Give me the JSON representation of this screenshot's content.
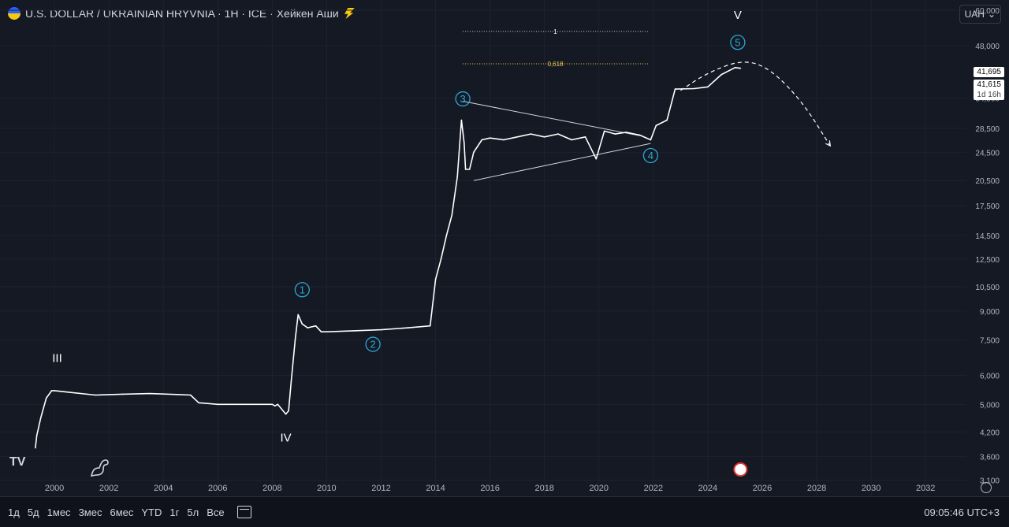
{
  "header": {
    "title": "U.S. DOLLAR / UKRAINIAN HRYVNIA · 1H · ICE · Хейкен Аши",
    "currency": "UAH"
  },
  "price_labels": {
    "current_price": "41,695",
    "last_price": "41,615",
    "countdown": "1d 16h"
  },
  "bottom_bar": {
    "ranges": [
      "1д",
      "5д",
      "1мес",
      "3мес",
      "6мес",
      "YTD",
      "1г",
      "5л",
      "Все"
    ],
    "clock": "09:05:46 UTC+3"
  },
  "colors": {
    "background": "#151924",
    "price_line": "#ffffff",
    "wave_circle": "#2ba7d6",
    "fib_label": "#f2c94c"
  },
  "chart_data": {
    "type": "line",
    "title": "",
    "xlabel": "",
    "ylabel": "",
    "y_scale": "log",
    "xlim": [
      1998.0,
      2033.5
    ],
    "ylim": [
      2800,
      64000
    ],
    "x_ticks": [
      "2000",
      "2002",
      "2004",
      "2006",
      "2008",
      "2010",
      "2012",
      "2014",
      "2016",
      "2018",
      "2020",
      "2022",
      "2024",
      "2026",
      "2028",
      "2030",
      "2032"
    ],
    "y_ticks": [
      "60,000",
      "48,000",
      "34,500",
      "28,500",
      "24,500",
      "20,500",
      "17,500",
      "14,500",
      "12,500",
      "10,500",
      "9,000",
      "7,500",
      "6,000",
      "5,000",
      "4,200",
      "3,600",
      "3,100"
    ],
    "series": [
      {
        "x": [
          1999.3,
          1999.35,
          1999.5,
          1999.7,
          1999.9,
          2000.0,
          2000.5,
          2001.5,
          2002.5,
          2003.5,
          2004.5,
          2005.0,
          2005.3,
          2006.0,
          2007.0,
          2008.0,
          2008.1,
          2008.2,
          2008.5,
          2008.6,
          2008.7,
          2008.85,
          2008.95,
          2009.1,
          2009.3,
          2009.6,
          2009.8,
          2010.0,
          2011.0,
          2012.0,
          2013.0,
          2013.8,
          2014.0,
          2014.2,
          2014.4,
          2014.6,
          2014.8,
          2014.95,
          2015.05,
          2015.1,
          2015.25,
          2015.4,
          2015.7,
          2016.0,
          2016.5,
          2017.0,
          2017.5,
          2018.0,
          2018.5,
          2019.0,
          2019.5,
          2019.9,
          2020.2,
          2020.6,
          2021.0,
          2021.5,
          2021.9,
          2022.1,
          2022.5,
          2022.8,
          2023.5,
          2024.0,
          2024.5,
          2025.0,
          2025.2
        ],
        "values": [
          3800,
          4100,
          4600,
          5200,
          5450,
          5450,
          5400,
          5300,
          5330,
          5350,
          5320,
          5300,
          5050,
          5000,
          5000,
          5000,
          4950,
          5000,
          4700,
          4800,
          5800,
          7600,
          8800,
          8300,
          8100,
          8200,
          7900,
          7900,
          7950,
          8000,
          8100,
          8200,
          11000,
          12500,
          14500,
          16500,
          21000,
          30000,
          26000,
          22000,
          22000,
          24500,
          26500,
          26800,
          26500,
          27000,
          27500,
          27000,
          27500,
          26500,
          27000,
          23500,
          28000,
          27500,
          27800,
          27300,
          26500,
          29000,
          30000,
          36500,
          36600,
          37000,
          40000,
          41800,
          41615
        ]
      }
    ],
    "annotations": {
      "wave_labels": [
        {
          "text": "III",
          "x": 2000.1,
          "y": 6700,
          "circled": false
        },
        {
          "text": "IV",
          "x": 2008.5,
          "y": 4050,
          "circled": false
        },
        {
          "text": "1",
          "x": 2009.1,
          "y": 10300,
          "circled": true
        },
        {
          "text": "2",
          "x": 2011.7,
          "y": 7300,
          "circled": true
        },
        {
          "text": "3",
          "x": 2015.0,
          "y": 34300,
          "circled": true
        },
        {
          "text": "4",
          "x": 2021.9,
          "y": 24000,
          "circled": true
        },
        {
          "text": "5",
          "x": 2025.1,
          "y": 49000,
          "circled": true
        },
        {
          "text": "V",
          "x": 2025.1,
          "y": 58200,
          "circled": false
        }
      ],
      "fib_levels": [
        {
          "text": "1",
          "x_start": 2015.0,
          "x_end": 2021.8,
          "y": 52500
        },
        {
          "text": "0,618",
          "x_start": 2015.0,
          "x_end": 2021.8,
          "y": 42800
        }
      ],
      "triangle": {
        "upper": [
          [
            2015.0,
            33800
          ],
          [
            2021.5,
            27200
          ]
        ],
        "lower": [
          [
            2015.4,
            20500
          ],
          [
            2021.9,
            25900
          ]
        ]
      },
      "projection": [
        [
          2023.0,
          36200
        ],
        [
          2024.0,
          40500
        ],
        [
          2025.3,
          44000
        ],
        [
          2026.3,
          41500
        ],
        [
          2027.5,
          33500
        ],
        [
          2028.5,
          25500
        ]
      ]
    }
  }
}
